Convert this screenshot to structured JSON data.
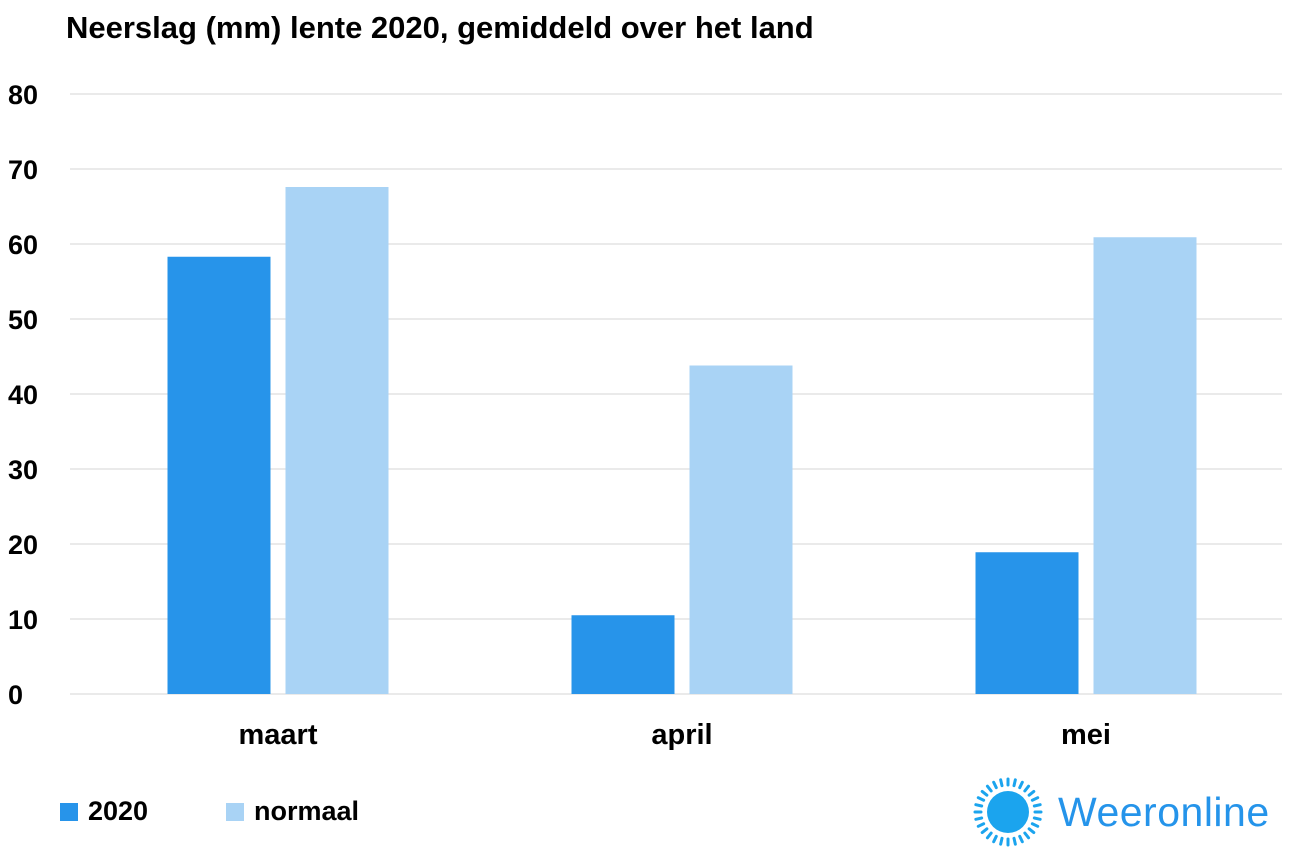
{
  "chart_data": {
    "type": "bar",
    "title": "Neerslag (mm) lente 2020, gemiddeld over het land",
    "categories": [
      "maart",
      "april",
      "mei"
    ],
    "series": [
      {
        "name": "2020",
        "values": [
          58.3,
          10.5,
          18.9
        ],
        "color": "#2794ea"
      },
      {
        "name": "normaal",
        "values": [
          67.6,
          43.8,
          60.9
        ],
        "color": "#a9d3f5"
      }
    ],
    "xlabel": "",
    "ylabel": "",
    "ylim": [
      0,
      80
    ],
    "yticks": [
      0,
      10,
      20,
      30,
      40,
      50,
      60,
      70,
      80
    ],
    "grid": true,
    "legend_position": "bottom-left"
  },
  "legend": {
    "items": [
      {
        "label": "2020",
        "color": "#2794ea"
      },
      {
        "label": "normaal",
        "color": "#a9d3f5"
      }
    ]
  },
  "brand": {
    "name": "Weeronline",
    "icon": "sun-icon",
    "color": "#2594ea"
  }
}
